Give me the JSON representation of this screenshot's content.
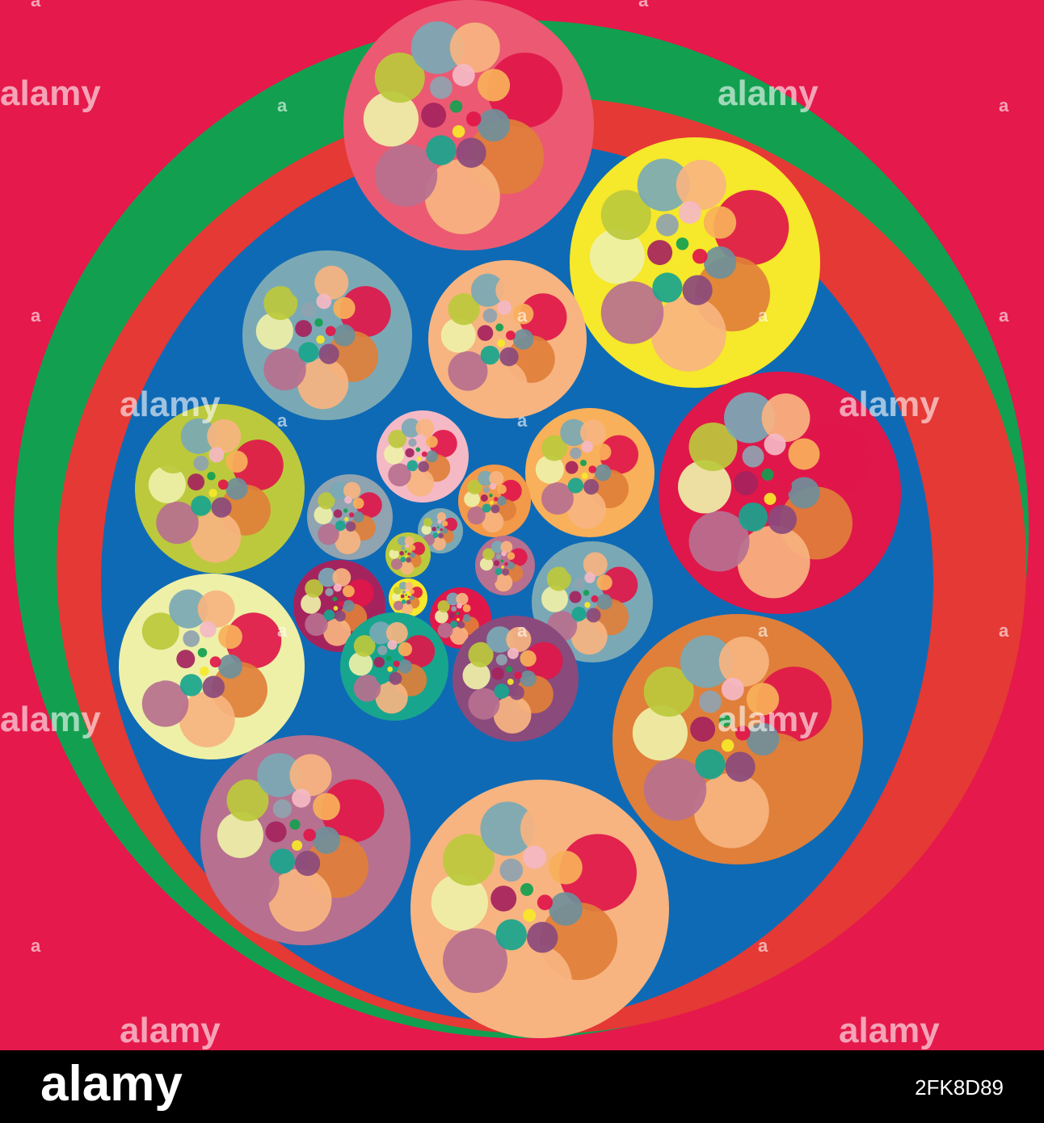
{
  "watermarks": [
    "alamy",
    "alamy",
    "alamy",
    "alamy",
    "alamy",
    "alamy",
    "alamy",
    "alamy"
  ],
  "watermark_marks": [
    "a",
    "a",
    "a",
    "a",
    "a",
    "a",
    "a",
    "a",
    "a",
    "a",
    "a",
    "a",
    "a",
    "a",
    "a",
    "a"
  ],
  "footer": {
    "logo": "alamy",
    "image_id": "2FK8D89"
  }
}
